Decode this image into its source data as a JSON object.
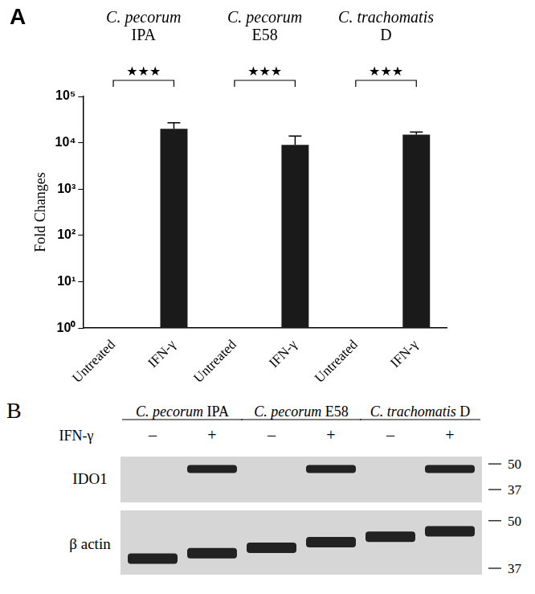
{
  "chart_data": {
    "type": "bar",
    "panel_label": "A",
    "y_label": "Fold Changes",
    "categories": [
      "Untreated",
      "IFN-γ",
      "Untreated",
      "IFN-γ",
      "Untreated",
      "IFN-γ"
    ],
    "groups": [
      {
        "name": "C. pecorum IPA",
        "significance": "★★★"
      },
      {
        "name": "C. pecorum E58",
        "significance": "★★★"
      },
      {
        "name": "C. trachomatis D",
        "significance": "★★★"
      }
    ],
    "values": [
      1,
      20000,
      1,
      9000,
      1,
      15000
    ],
    "errors": [
      null,
      7000,
      null,
      5000,
      null,
      2000
    ],
    "color": "#1a1a1a",
    "log": "y",
    "ylim": [
      1,
      100000
    ],
    "yticks": [
      {
        "value": 1,
        "label": "10⁰"
      },
      {
        "value": 10,
        "label": "10¹"
      },
      {
        "value": 100,
        "label": "10²"
      },
      {
        "value": 1000,
        "label": "10³"
      },
      {
        "value": 10000,
        "label": "10⁴"
      },
      {
        "value": 100000,
        "label": "10⁵"
      }
    ],
    "grid": false
  },
  "blot": {
    "panel_label": "B",
    "groups": [
      "C. pecorum IPA",
      "C. pecorum E58",
      "C. trachomatis D"
    ],
    "treatment_label": "IFN-γ",
    "treatment": [
      "–",
      "+",
      "–",
      "+",
      "–",
      "+"
    ],
    "rows": [
      {
        "label": "IDO1",
        "bands": [
          false,
          true,
          false,
          true,
          false,
          true
        ],
        "markers": [
          50,
          37
        ]
      },
      {
        "label": "β actin",
        "bands": [
          true,
          true,
          true,
          true,
          true,
          true
        ],
        "markers": [
          50,
          37
        ]
      }
    ]
  }
}
